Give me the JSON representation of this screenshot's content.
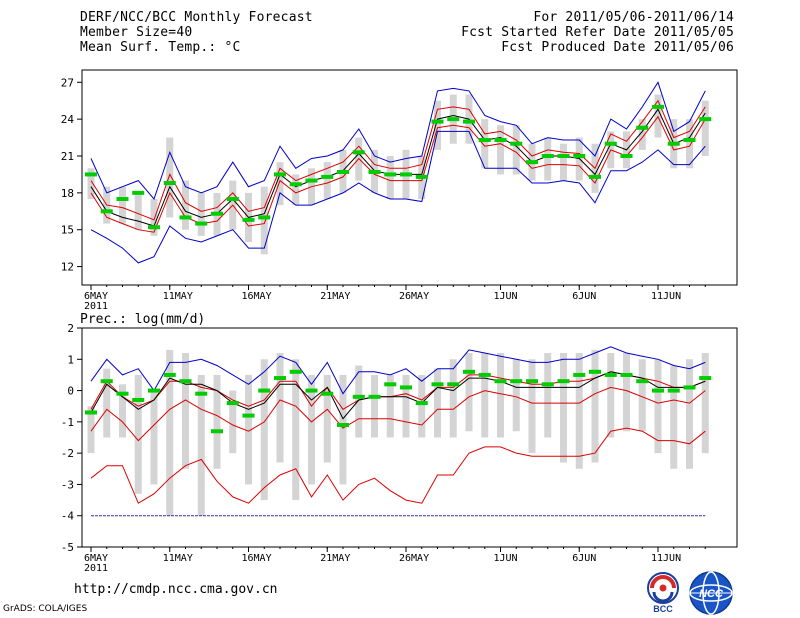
{
  "header": {
    "left": [
      "DERF/NCC/BCC Monthly Forecast",
      "Member Size=40",
      "Mean Surf. Temp.: °C"
    ],
    "right": [
      "For 2011/05/06-2011/06/14",
      "Fcst Started Refer Date 2011/05/05",
      "Fcst Produced Date 2011/05/06"
    ]
  },
  "footer": {
    "url": "http://cmdp.ncc.cma.gov.cn",
    "credit": "GrADS: COLA/IGES"
  },
  "logos": {
    "bcc": "BCC",
    "ncc": "NCC"
  },
  "colors": {
    "envelope": "#0000cc",
    "spread": "#dd0000",
    "mean": "#000000",
    "median": "#00cc00",
    "box": "#d4d4d4"
  },
  "chart_data": [
    {
      "type": "line",
      "title": "Mean Surf. Temp.: °C",
      "xlabel": "",
      "ylabel": "°C",
      "ylim": [
        10.5,
        28
      ],
      "yticks": [
        12,
        15,
        18,
        21,
        24,
        27
      ],
      "x_ticks": [
        {
          "day": 0,
          "label": "6MAY"
        },
        {
          "day": 5,
          "label": "11MAY"
        },
        {
          "day": 10,
          "label": "16MAY"
        },
        {
          "day": 15,
          "label": "21MAY"
        },
        {
          "day": 20,
          "label": "26MAY"
        },
        {
          "day": 26,
          "label": "1JUN"
        },
        {
          "day": 31,
          "label": "6JUN"
        },
        {
          "day": 36,
          "label": "11JUN"
        }
      ],
      "x_year": "2011",
      "box_min": [
        17.5,
        15.5,
        15.5,
        15.0,
        14.5,
        16.0,
        15.0,
        14.5,
        14.5,
        15.0,
        14.0,
        13.0,
        17.0,
        17.0,
        17.0,
        17.5,
        18.0,
        19.0,
        18.0,
        17.5,
        17.5,
        17.5,
        21.5,
        22.0,
        22.0,
        20.0,
        19.5,
        19.5,
        19.0,
        19.0,
        19.0,
        19.0,
        18.0,
        20.0,
        20.0,
        21.5,
        22.5,
        20.0,
        20.0,
        21.0
      ],
      "box_max": [
        20.0,
        18.5,
        18.5,
        18.0,
        17.5,
        22.5,
        19.0,
        18.0,
        18.0,
        19.0,
        18.0,
        18.5,
        20.5,
        19.5,
        20.0,
        20.5,
        21.5,
        22.5,
        21.5,
        21.0,
        21.5,
        21.0,
        25.5,
        26.0,
        26.0,
        24.0,
        23.5,
        23.5,
        22.0,
        22.5,
        22.0,
        22.5,
        22.0,
        23.0,
        23.0,
        24.0,
        26.0,
        24.0,
        24.0,
        25.5
      ],
      "series": [
        {
          "name": "max",
          "color": "#0000cc",
          "values": [
            20.8,
            18.0,
            18.5,
            19.0,
            17.5,
            21.3,
            18.5,
            18.0,
            18.5,
            20.5,
            18.5,
            19.0,
            21.8,
            20.0,
            20.8,
            21.0,
            21.5,
            23.2,
            21.0,
            20.5,
            20.8,
            21.0,
            26.3,
            26.5,
            26.3,
            24.3,
            23.8,
            23.5,
            22.0,
            22.5,
            22.3,
            22.3,
            21.0,
            24.0,
            23.2,
            25.0,
            27.0,
            23.0,
            23.8,
            26.3
          ]
        },
        {
          "name": "spread_upper",
          "color": "#dd0000",
          "values": [
            19.0,
            17.0,
            16.8,
            16.3,
            15.8,
            19.5,
            17.2,
            16.5,
            16.8,
            18.0,
            16.5,
            16.8,
            20.0,
            19.0,
            19.5,
            20.0,
            20.5,
            21.8,
            20.3,
            20.0,
            20.0,
            20.3,
            24.8,
            25.0,
            24.8,
            22.8,
            23.0,
            22.3,
            21.0,
            21.5,
            21.3,
            21.2,
            20.0,
            22.8,
            22.2,
            23.8,
            25.5,
            22.5,
            23.0,
            25.0
          ]
        },
        {
          "name": "mean",
          "color": "#000000",
          "values": [
            18.5,
            16.5,
            16.0,
            15.7,
            15.3,
            18.5,
            16.5,
            16.0,
            16.3,
            17.5,
            16.0,
            16.3,
            19.5,
            18.5,
            19.0,
            19.3,
            19.8,
            21.2,
            19.8,
            19.5,
            19.5,
            19.5,
            24.0,
            24.3,
            24.0,
            22.3,
            22.5,
            21.8,
            20.5,
            21.0,
            21.0,
            20.8,
            19.5,
            22.0,
            21.5,
            23.0,
            24.8,
            22.0,
            22.5,
            24.5
          ]
        },
        {
          "name": "spread_lower",
          "color": "#dd0000",
          "values": [
            18.0,
            16.0,
            15.5,
            15.0,
            14.8,
            18.0,
            16.0,
            15.5,
            15.7,
            17.0,
            15.3,
            15.5,
            19.0,
            18.0,
            18.5,
            18.8,
            19.3,
            20.8,
            19.5,
            19.0,
            19.0,
            19.0,
            23.3,
            23.5,
            23.3,
            21.8,
            22.0,
            21.3,
            20.0,
            20.3,
            20.3,
            20.2,
            18.8,
            21.5,
            21.0,
            22.5,
            24.2,
            21.5,
            21.8,
            24.0
          ]
        },
        {
          "name": "min",
          "color": "#0000cc",
          "values": [
            15.0,
            14.3,
            13.5,
            12.3,
            12.8,
            15.3,
            14.3,
            14.0,
            14.5,
            15.0,
            13.5,
            13.5,
            18.0,
            17.0,
            17.0,
            17.5,
            18.0,
            18.8,
            18.0,
            17.5,
            17.5,
            17.3,
            23.0,
            23.0,
            23.0,
            20.0,
            20.0,
            20.0,
            18.8,
            18.8,
            19.0,
            18.8,
            17.2,
            19.8,
            19.8,
            20.5,
            21.5,
            20.3,
            20.3,
            21.8
          ]
        },
        {
          "name": "median",
          "color": "#00cc00",
          "values": [
            19.5,
            16.5,
            17.5,
            18.0,
            15.2,
            18.8,
            16.0,
            15.5,
            16.3,
            17.5,
            15.8,
            16.0,
            19.5,
            18.7,
            19.0,
            19.3,
            19.7,
            21.3,
            19.7,
            19.5,
            19.5,
            19.3,
            23.8,
            24.0,
            23.8,
            22.3,
            22.3,
            22.0,
            20.5,
            21.0,
            21.0,
            21.0,
            19.3,
            22.0,
            21.0,
            23.3,
            25.0,
            22.0,
            22.3,
            24.0
          ]
        }
      ]
    },
    {
      "type": "line",
      "title": "Prec.: log(mm/d)",
      "xlabel": "",
      "ylabel": "log(mm/d)",
      "ylim": [
        -5,
        2
      ],
      "yticks": [
        -5,
        -4,
        -3,
        -2,
        -1,
        0,
        1,
        2
      ],
      "x_ticks": [
        {
          "day": 0,
          "label": "6MAY"
        },
        {
          "day": 5,
          "label": "11MAY"
        },
        {
          "day": 10,
          "label": "16MAY"
        },
        {
          "day": 15,
          "label": "21MAY"
        },
        {
          "day": 20,
          "label": "26MAY"
        },
        {
          "day": 26,
          "label": "1JUN"
        },
        {
          "day": 31,
          "label": "6JUN"
        },
        {
          "day": 36,
          "label": "11JUN"
        }
      ],
      "x_year": "2011",
      "box_min": [
        -2.0,
        -1.5,
        -1.5,
        -3.3,
        -3.0,
        -4.0,
        -2.5,
        -4.0,
        -2.5,
        -2.0,
        -3.0,
        -3.5,
        -2.3,
        -3.5,
        -3.0,
        -2.3,
        -3.0,
        -1.5,
        -1.5,
        -1.5,
        -1.5,
        -1.5,
        -1.5,
        -1.5,
        -1.3,
        -1.5,
        -1.5,
        -1.3,
        -2.0,
        -1.5,
        -2.3,
        -2.5,
        -2.3,
        -1.5,
        -1.3,
        -1.3,
        -2.0,
        -2.5,
        -2.5,
        -2.0
      ],
      "box_max": [
        -0.5,
        0.7,
        0.2,
        0.5,
        0.0,
        1.3,
        1.2,
        0.5,
        0.5,
        0.0,
        0.5,
        1.0,
        1.2,
        1.0,
        0.5,
        0.5,
        0.5,
        0.8,
        0.5,
        0.5,
        0.5,
        0.5,
        0.7,
        1.0,
        1.2,
        1.2,
        1.2,
        1.0,
        1.0,
        1.2,
        1.2,
        1.2,
        1.3,
        1.2,
        1.2,
        1.0,
        1.0,
        0.8,
        1.0,
        1.2
      ],
      "series": [
        {
          "name": "max",
          "color": "#0000cc",
          "values": [
            0.3,
            1.0,
            0.5,
            0.7,
            0.0,
            0.9,
            0.9,
            1.0,
            0.8,
            0.5,
            0.2,
            0.6,
            1.1,
            0.9,
            0.2,
            0.9,
            -0.1,
            0.6,
            0.6,
            0.5,
            0.7,
            0.3,
            0.7,
            0.7,
            1.3,
            1.2,
            1.1,
            1.0,
            0.9,
            0.9,
            1.0,
            1.0,
            1.2,
            1.4,
            1.2,
            1.1,
            1.0,
            0.8,
            0.7,
            0.9
          ]
        },
        {
          "name": "spread_upper",
          "color": "#dd0000",
          "values": [
            -0.6,
            0.3,
            -0.2,
            -0.5,
            -0.3,
            0.3,
            0.3,
            0.1,
            0.0,
            -0.3,
            -0.5,
            -0.3,
            0.3,
            0.3,
            -0.5,
            0.1,
            -0.6,
            -0.3,
            -0.2,
            -0.2,
            -0.1,
            -0.3,
            0.1,
            0.1,
            0.5,
            0.5,
            0.4,
            0.3,
            0.2,
            0.2,
            0.3,
            0.3,
            0.4,
            0.6,
            0.5,
            0.4,
            0.3,
            0.1,
            0.1,
            0.3
          ]
        },
        {
          "name": "mean",
          "color": "#000000",
          "values": [
            -0.7,
            0.2,
            -0.2,
            -0.6,
            -0.3,
            0.4,
            0.2,
            0.2,
            0.0,
            -0.4,
            -0.6,
            -0.4,
            0.2,
            0.2,
            -0.3,
            0.1,
            -0.9,
            -0.3,
            -0.2,
            -0.2,
            -0.2,
            -0.4,
            0.1,
            0.0,
            0.4,
            0.4,
            0.3,
            0.1,
            0.1,
            0.1,
            0.1,
            0.1,
            0.4,
            0.6,
            0.5,
            0.4,
            0.1,
            0.1,
            0.1,
            0.3
          ]
        },
        {
          "name": "spread_lower",
          "color": "#dd0000",
          "values": [
            -1.3,
            -0.6,
            -1.0,
            -1.6,
            -1.1,
            -0.6,
            -0.3,
            -0.6,
            -0.8,
            -1.1,
            -1.3,
            -1.0,
            -0.3,
            -0.5,
            -1.0,
            -0.6,
            -1.2,
            -0.9,
            -0.9,
            -0.9,
            -1.0,
            -1.1,
            -0.6,
            -0.6,
            -0.2,
            0.0,
            -0.1,
            -0.2,
            -0.4,
            -0.4,
            -0.4,
            -0.4,
            -0.1,
            0.1,
            0.0,
            -0.2,
            -0.4,
            -0.3,
            -0.4,
            0.0
          ]
        },
        {
          "name": "min",
          "color": "#dd0000",
          "values": [
            -2.8,
            -2.4,
            -2.4,
            -3.6,
            -3.3,
            -2.8,
            -2.4,
            -2.2,
            -2.9,
            -3.4,
            -3.6,
            -3.1,
            -2.7,
            -2.5,
            -3.4,
            -2.7,
            -3.5,
            -3.0,
            -2.8,
            -3.2,
            -3.5,
            -3.6,
            -2.7,
            -2.7,
            -2.0,
            -1.8,
            -1.8,
            -2.0,
            -2.1,
            -2.1,
            -2.1,
            -2.1,
            -2.0,
            -1.3,
            -1.2,
            -1.3,
            -1.6,
            -1.6,
            -1.7,
            -1.3
          ]
        },
        {
          "name": "floor",
          "color": "#3333aa",
          "values": [
            -4,
            -4,
            -4,
            -4,
            -4,
            -4,
            -4,
            -4,
            -4,
            -4,
            -4,
            -4,
            -4,
            -4,
            -4,
            -4,
            -4,
            -4,
            -4,
            -4,
            -4,
            -4,
            -4,
            -4,
            -4,
            -4,
            -4,
            -4,
            -4,
            -4,
            -4,
            -4,
            -4,
            -4,
            -4,
            -4,
            -4,
            -4,
            -4,
            -4
          ]
        },
        {
          "name": "median",
          "color": "#00cc00",
          "values": [
            -0.7,
            0.3,
            -0.1,
            -0.3,
            0.0,
            0.5,
            0.3,
            -0.1,
            -1.3,
            -0.4,
            -0.8,
            0.0,
            0.4,
            0.6,
            0.0,
            -0.1,
            -1.1,
            -0.2,
            -0.2,
            0.2,
            0.1,
            -0.4,
            0.2,
            0.2,
            0.6,
            0.5,
            0.3,
            0.3,
            0.3,
            0.2,
            0.3,
            0.5,
            0.6,
            0.5,
            0.5,
            0.3,
            0.0,
            0.0,
            0.1,
            0.4
          ]
        }
      ]
    }
  ]
}
